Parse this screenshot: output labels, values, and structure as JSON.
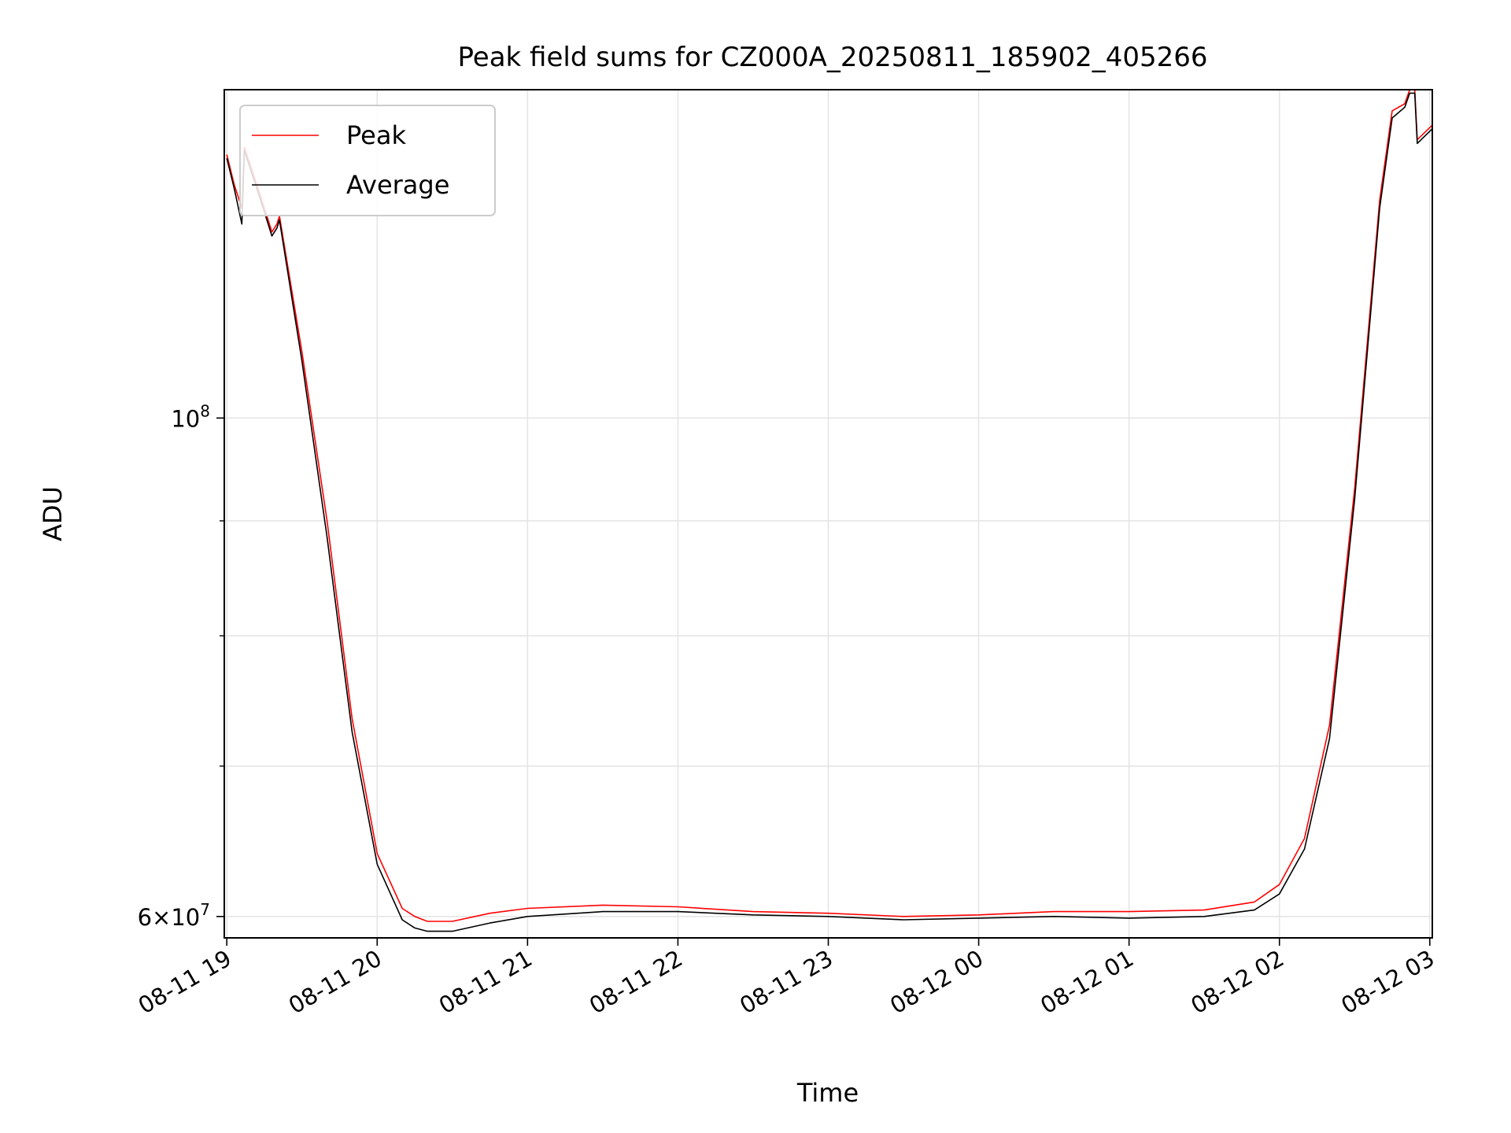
{
  "chart_data": {
    "type": "line",
    "title": "Peak field sums for CZ000A_20250811_185902_405266",
    "xlabel": "Time",
    "ylabel": "ADU",
    "yscale": "log",
    "xlim": [
      "2025-08-11 18:59",
      "2025-08-12 03:01"
    ],
    "ylim": [
      58700000,
      140000000
    ],
    "x_ticks": [
      "08-11 19",
      "08-11 20",
      "08-11 21",
      "08-11 22",
      "08-11 23",
      "08-12 00",
      "08-12 01",
      "08-12 02",
      "08-12 03"
    ],
    "y_ticks_labeled": [
      {
        "value": 100000000,
        "base": "10",
        "exp": "8",
        "mant": ""
      },
      {
        "value": 60000000,
        "base": "10",
        "exp": "7",
        "mant": "6×"
      }
    ],
    "y_minor_ticks": [
      70000000,
      80000000,
      90000000
    ],
    "grid": true,
    "legend_position": "top-left",
    "series": [
      {
        "name": "Peak",
        "color": "#ff0000",
        "points": [
          [
            "2025-08-11 19:00",
            131000000
          ],
          [
            "2025-08-11 19:03",
            127000000
          ],
          [
            "2025-08-11 19:06",
            124000000
          ],
          [
            "2025-08-11 19:07",
            132000000
          ],
          [
            "2025-08-11 19:10",
            129000000
          ],
          [
            "2025-08-11 19:15",
            124000000
          ],
          [
            "2025-08-11 19:18",
            121000000
          ],
          [
            "2025-08-11 19:20",
            122000000
          ],
          [
            "2025-08-11 19:21",
            123000000
          ],
          [
            "2025-08-11 19:30",
            107000000
          ],
          [
            "2025-08-11 19:40",
            90000000
          ],
          [
            "2025-08-11 19:50",
            73500000
          ],
          [
            "2025-08-11 20:00",
            64000000
          ],
          [
            "2025-08-11 20:10",
            60500000
          ],
          [
            "2025-08-11 20:15",
            60000000
          ],
          [
            "2025-08-11 20:20",
            59700000
          ],
          [
            "2025-08-11 20:30",
            59700000
          ],
          [
            "2025-08-11 20:45",
            60200000
          ],
          [
            "2025-08-11 21:00",
            60500000
          ],
          [
            "2025-08-11 21:30",
            60700000
          ],
          [
            "2025-08-11 22:00",
            60600000
          ],
          [
            "2025-08-11 22:30",
            60300000
          ],
          [
            "2025-08-11 23:00",
            60200000
          ],
          [
            "2025-08-11 23:30",
            60000000
          ],
          [
            "2025-08-12 00:00",
            60100000
          ],
          [
            "2025-08-12 00:30",
            60300000
          ],
          [
            "2025-08-12 01:00",
            60300000
          ],
          [
            "2025-08-12 01:30",
            60400000
          ],
          [
            "2025-08-12 01:50",
            60900000
          ],
          [
            "2025-08-12 02:00",
            62000000
          ],
          [
            "2025-08-12 02:10",
            65000000
          ],
          [
            "2025-08-12 02:20",
            73000000
          ],
          [
            "2025-08-12 02:30",
            93000000
          ],
          [
            "2025-08-12 02:40",
            125000000
          ],
          [
            "2025-08-12 02:45",
            137000000
          ],
          [
            "2025-08-12 02:50",
            138000000
          ],
          [
            "2025-08-12 02:52",
            140000000
          ],
          [
            "2025-08-12 02:54",
            140000000
          ],
          [
            "2025-08-12 02:55",
            133000000
          ],
          [
            "2025-08-12 03:01",
            135000000
          ]
        ]
      },
      {
        "name": "Average",
        "color": "#000000",
        "points": [
          [
            "2025-08-11 19:00",
            130500000
          ],
          [
            "2025-08-11 19:03",
            126500000
          ],
          [
            "2025-08-11 19:06",
            122000000
          ],
          [
            "2025-08-11 19:07",
            131500000
          ],
          [
            "2025-08-11 19:10",
            128500000
          ],
          [
            "2025-08-11 19:15",
            123500000
          ],
          [
            "2025-08-11 19:18",
            120500000
          ],
          [
            "2025-08-11 19:20",
            121500000
          ],
          [
            "2025-08-11 19:21",
            122500000
          ],
          [
            "2025-08-11 19:30",
            106000000
          ],
          [
            "2025-08-11 19:40",
            88500000
          ],
          [
            "2025-08-11 19:50",
            72500000
          ],
          [
            "2025-08-11 20:00",
            63300000
          ],
          [
            "2025-08-11 20:10",
            59800000
          ],
          [
            "2025-08-11 20:15",
            59300000
          ],
          [
            "2025-08-11 20:20",
            59100000
          ],
          [
            "2025-08-11 20:30",
            59100000
          ],
          [
            "2025-08-11 20:45",
            59600000
          ],
          [
            "2025-08-11 21:00",
            60000000
          ],
          [
            "2025-08-11 21:30",
            60300000
          ],
          [
            "2025-08-11 22:00",
            60300000
          ],
          [
            "2025-08-11 22:30",
            60100000
          ],
          [
            "2025-08-11 23:00",
            60000000
          ],
          [
            "2025-08-11 23:30",
            59800000
          ],
          [
            "2025-08-12 00:00",
            59900000
          ],
          [
            "2025-08-12 00:30",
            60000000
          ],
          [
            "2025-08-12 01:00",
            59900000
          ],
          [
            "2025-08-12 01:30",
            60000000
          ],
          [
            "2025-08-12 01:50",
            60400000
          ],
          [
            "2025-08-12 02:00",
            61400000
          ],
          [
            "2025-08-12 02:10",
            64300000
          ],
          [
            "2025-08-12 02:20",
            72000000
          ],
          [
            "2025-08-12 02:30",
            92000000
          ],
          [
            "2025-08-12 02:40",
            124000000
          ],
          [
            "2025-08-12 02:45",
            136000000
          ],
          [
            "2025-08-12 02:50",
            137500000
          ],
          [
            "2025-08-12 02:52",
            139500000
          ],
          [
            "2025-08-12 02:54",
            139500000
          ],
          [
            "2025-08-12 02:55",
            132500000
          ],
          [
            "2025-08-12 03:01",
            134500000
          ]
        ]
      }
    ]
  }
}
